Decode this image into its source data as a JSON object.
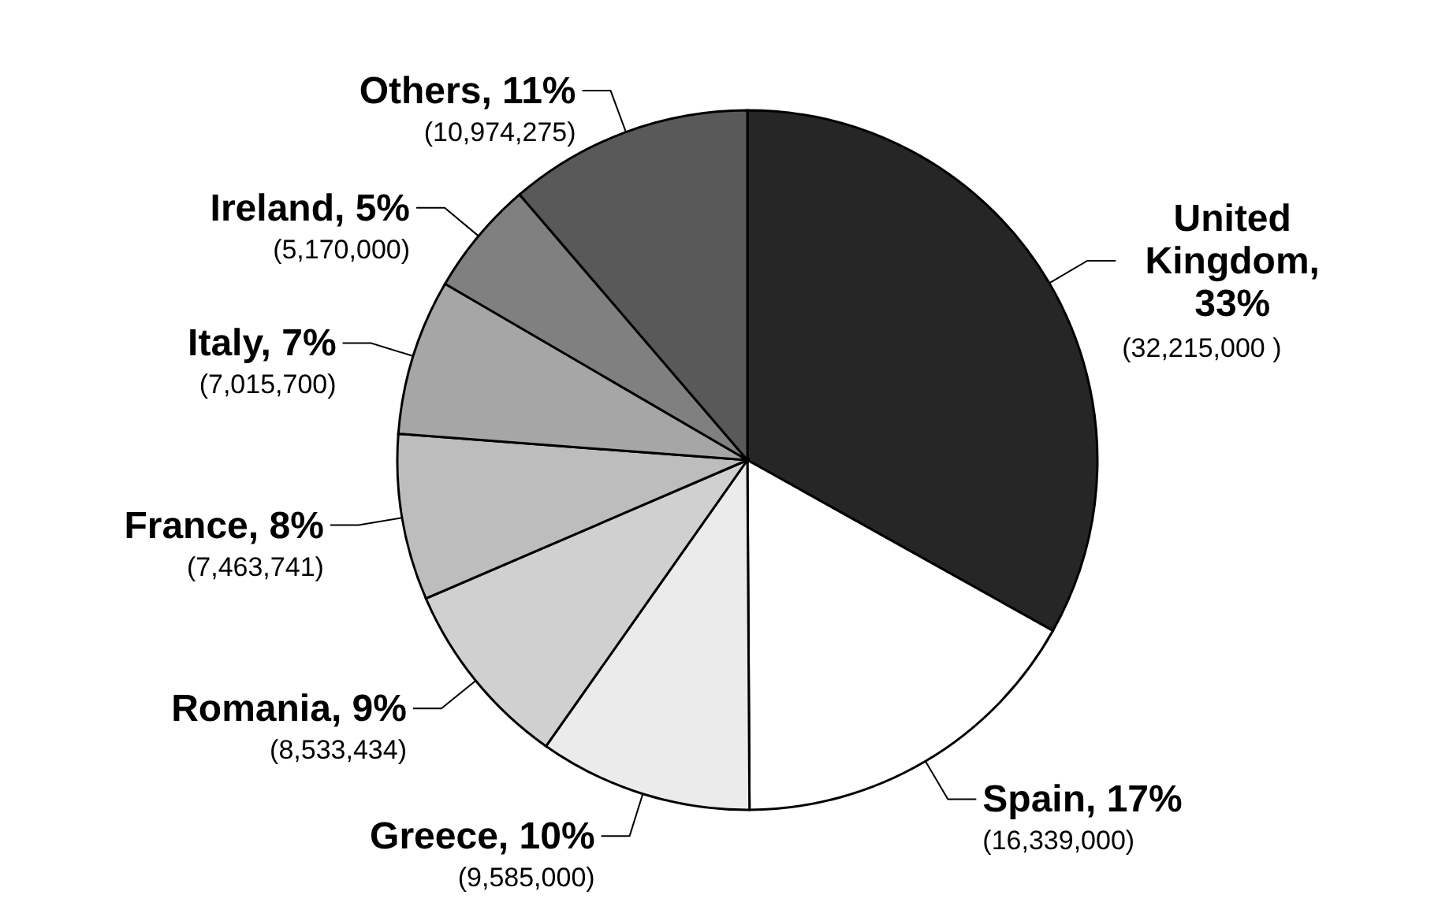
{
  "chart_data": {
    "type": "pie",
    "categories": [
      "United Kingdom, 33%",
      "Spain, 17%",
      "Greece, 10%",
      "Romania, 9%",
      "France, 8%",
      "Italy, 7%",
      "Ireland, 5%",
      "Others, 11%"
    ],
    "values": [
      32215000,
      16339000,
      9585000,
      8533434,
      7463741,
      7015700,
      5170000,
      10974275
    ],
    "value_labels": [
      "(32,215,000 )",
      "(16,339,000)",
      "(9,585,000)",
      "(8,533,434)",
      "(7,463,741)",
      "(7,015,700)",
      "(5,170,000)",
      "(10,974,275)"
    ],
    "colors": [
      "#262626",
      "#ffffff",
      "#ebebeb",
      "#d0d0d0",
      "#bdbdbd",
      "#a6a6a6",
      "#808080",
      "#595959"
    ]
  }
}
